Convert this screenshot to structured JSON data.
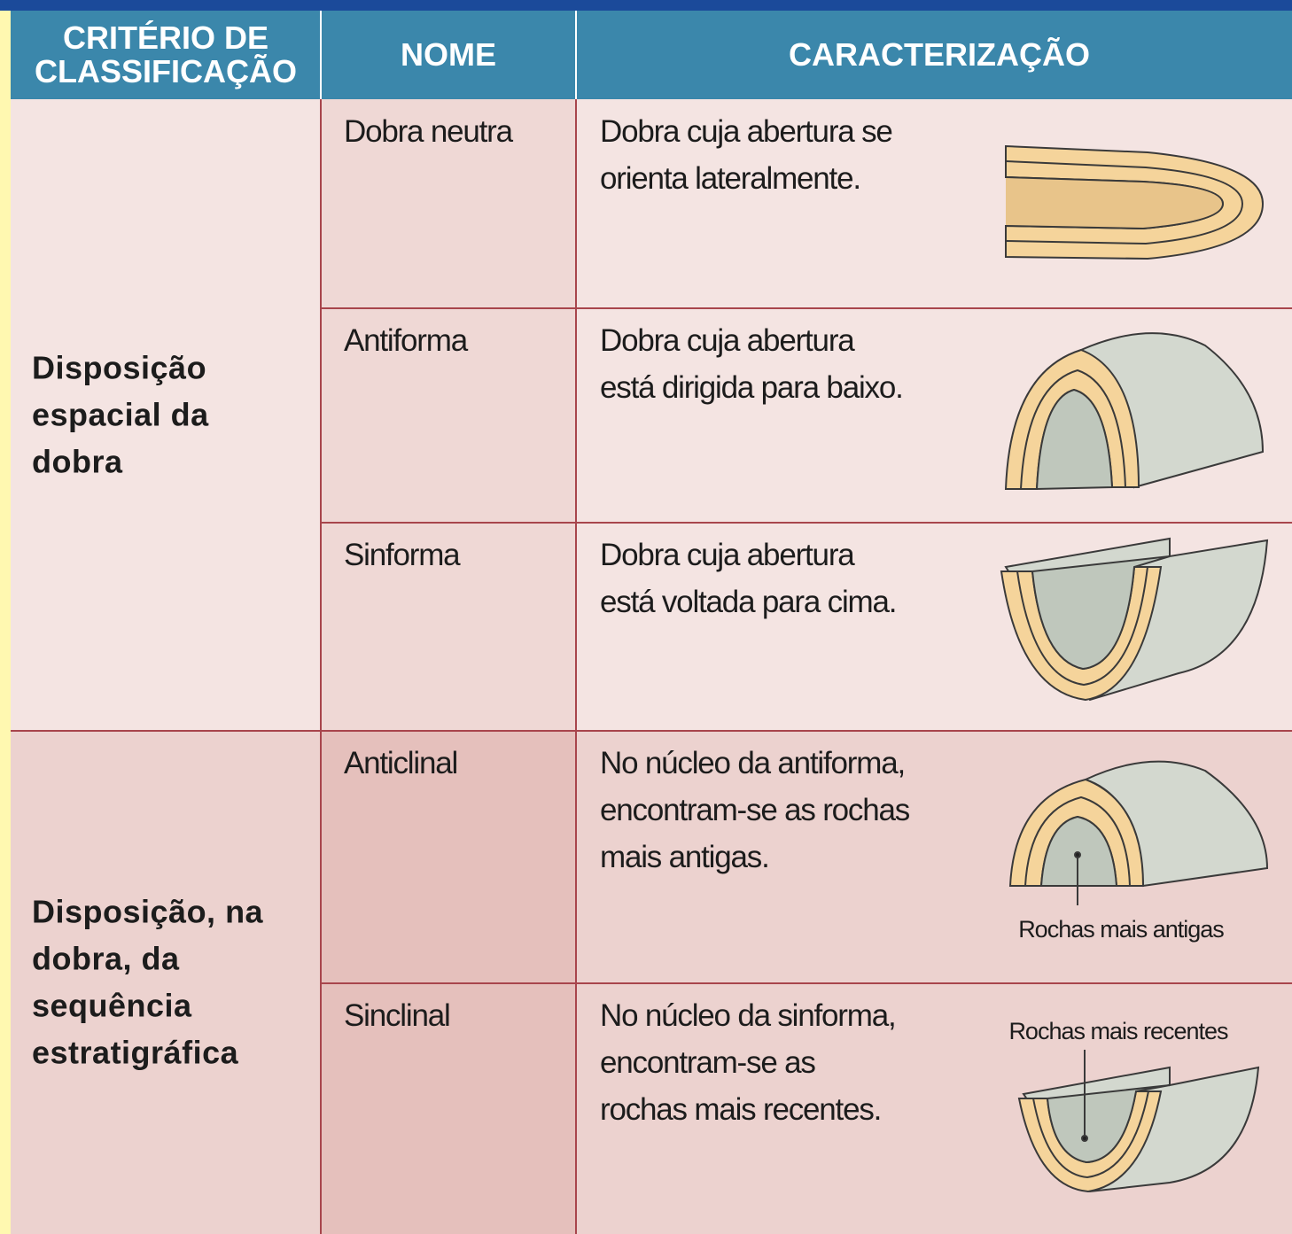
{
  "table": {
    "header": [
      [
        "CRITÉRIO DE",
        "CLASSIFICAÇÃO"
      ],
      [
        "NOME"
      ],
      [
        "CARACTERIZAÇÃO"
      ]
    ],
    "groups": [
      {
        "criterion": [
          "Disposição",
          "espacial da",
          "dobra"
        ],
        "rows": [
          {
            "name": "Dobra neutra",
            "description": [
              "Dobra cuja abertura se",
              "orienta  lateralmente."
            ]
          },
          {
            "name": "Antiforma",
            "description": [
              "Dobra cuja abertura",
              "está dirigida para baixo."
            ]
          },
          {
            "name": "Sinforma",
            "description": [
              "Dobra cuja abertura",
              "está voltada para cima."
            ]
          }
        ]
      },
      {
        "criterion": [
          "Disposição, na",
          "dobra, da",
          "sequência",
          "estratigráfica"
        ],
        "rows": [
          {
            "name": "Anticlinal",
            "description": [
              "No núcleo da antiforma,",
              "encontram-se as rochas",
              "mais antigas."
            ],
            "figure_label": "Rochas mais antigas"
          },
          {
            "name": "Sinclinal",
            "description": [
              "No núcleo da sinforma,",
              "encontram-se as",
              "rochas mais recentes."
            ],
            "figure_label": "Rochas mais recentes"
          }
        ]
      }
    ]
  }
}
